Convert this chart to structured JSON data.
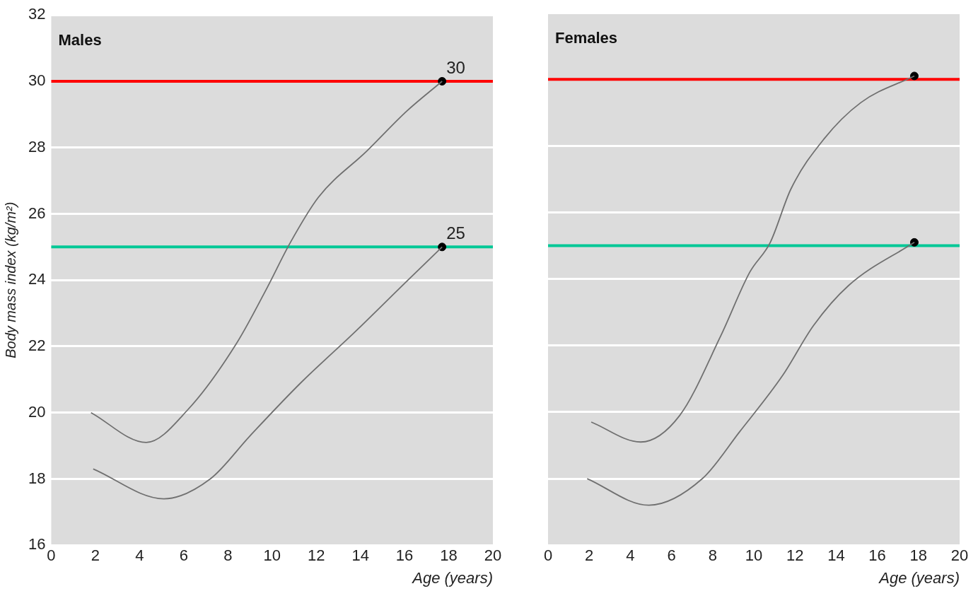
{
  "chart_data": [
    {
      "type": "line",
      "title": "Males",
      "xlabel": "Age (years)",
      "ylabel": "Body mass index (kg/m²)",
      "xlim": [
        0,
        20
      ],
      "xticks": [
        0,
        2,
        4,
        6,
        8,
        10,
        12,
        14,
        16,
        18,
        20
      ],
      "ylim": [
        16,
        32
      ],
      "yticks": [
        16,
        18,
        20,
        22,
        24,
        26,
        28,
        30,
        32
      ],
      "grid": "y",
      "line_style": "solid",
      "series": [
        {
          "type": "line",
          "color": "#707070",
          "x": [
            1.8,
            4.3,
            6.2,
            8.4,
            9.8,
            10.8,
            12.1,
            14.3,
            16.1,
            17.7
          ],
          "values": [
            20.0,
            19.1,
            20.1,
            22.1,
            23.8,
            25.1,
            26.5,
            27.9,
            29.1,
            30.0
          ]
        },
        {
          "type": "line",
          "color": "#707070",
          "x": [
            1.9,
            5.1,
            7.2,
            9.0,
            11.3,
            13.7,
            16.0,
            17.7
          ],
          "values": [
            18.3,
            17.4,
            18.0,
            19.3,
            20.9,
            22.4,
            23.9,
            25.0
          ]
        },
        {
          "type": "scatter",
          "color": "#000000",
          "x": [
            17.7,
            17.7
          ],
          "values": [
            30.0,
            25.0
          ]
        }
      ],
      "ref_lines": [
        {
          "axis": "y",
          "value": 30,
          "color": "#ff0000"
        },
        {
          "axis": "y",
          "value": 25,
          "color": "#00c896"
        }
      ],
      "annotations": [
        {
          "text": "30",
          "x": 17.7,
          "y": 30
        },
        {
          "text": "25",
          "x": 17.7,
          "y": 25
        }
      ]
    },
    {
      "type": "line",
      "title": "Females",
      "xlabel": "Age (years)",
      "xlim": [
        0,
        20
      ],
      "xticks": [
        0,
        2,
        4,
        6,
        8,
        10,
        12,
        14,
        16,
        18,
        20
      ],
      "ylim": [
        16,
        32
      ],
      "yticks": [
        16,
        18,
        20,
        22,
        24,
        26,
        28,
        30,
        32
      ],
      "grid": "y",
      "line_style": "solid",
      "tick_labels": "x",
      "series": [
        {
          "type": "line",
          "color": "#707070",
          "x": [
            2.1,
            4.5,
            6.4,
            8.4,
            9.8,
            10.8,
            11.8,
            13.4,
            15.2,
            17.8
          ],
          "values": [
            19.7,
            19.1,
            19.9,
            22.3,
            24.2,
            25.1,
            26.7,
            28.2,
            29.3,
            30.1
          ]
        },
        {
          "type": "line",
          "color": "#707070",
          "x": [
            1.9,
            4.9,
            7.5,
            9.3,
            11.4,
            12.9,
            14.6,
            17.8
          ],
          "values": [
            18.0,
            17.2,
            18.0,
            19.4,
            21.1,
            22.6,
            23.8,
            25.1
          ]
        },
        {
          "type": "scatter",
          "color": "#000000",
          "x": [
            17.8,
            17.8
          ],
          "values": [
            30.1,
            25.1
          ]
        }
      ],
      "ref_lines": [
        {
          "axis": "y",
          "value": 30,
          "color": "#ff0000"
        },
        {
          "axis": "y",
          "value": 25,
          "color": "#00c896"
        }
      ]
    }
  ]
}
